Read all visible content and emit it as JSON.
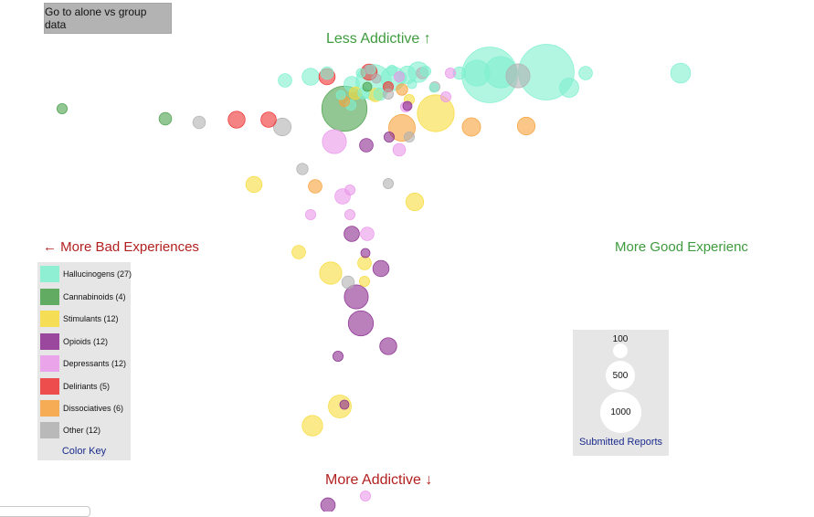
{
  "toggle_button": {
    "label": "Go to alone vs group data"
  },
  "axis_labels": {
    "top": "Less Addictive ↑",
    "bottom": "More Addictive ↓",
    "left": "← More Bad Experiences",
    "right": "More Good Experienc"
  },
  "color_key": {
    "title": "Color Key",
    "items": [
      {
        "label": "Hallucinogens (27)",
        "color": "#7ff0cf"
      },
      {
        "label": "Cannabinoids (4)",
        "color": "#4aa04a"
      },
      {
        "label": "Stimulants (12)",
        "color": "#f7dc3c"
      },
      {
        "label": "Opioids (12)",
        "color": "#8b2c8f"
      },
      {
        "label": "Depressants (12)",
        "color": "#ea98ea"
      },
      {
        "label": "Deliriants (5)",
        "color": "#ef3131"
      },
      {
        "label": "Dissociatives (6)",
        "color": "#f7a13b"
      },
      {
        "label": "Other (12)",
        "color": "#b0b0b0"
      }
    ]
  },
  "size_key": {
    "title": "Submitted Reports",
    "items": [
      {
        "label": "100",
        "reports": 100
      },
      {
        "label": "500",
        "reports": 500
      },
      {
        "label": "1000",
        "reports": 1000
      }
    ]
  },
  "chart_data": {
    "type": "scatter",
    "x_meaning": "relative share of good vs bad experiences (left = more bad, right = more good)",
    "y_meaning": "relative addictiveness (up = less addictive, down = more addictive)",
    "xlim": [
      0,
      891
    ],
    "ylim": [
      0,
      560
    ],
    "size_field": "submitted reports",
    "points": [
      {
        "cat": "Hallucinogens",
        "x": 536,
        "y": 82,
        "reports": 1180
      },
      {
        "cat": "Hallucinogens",
        "x": 598,
        "y": 79,
        "reports": 1180
      },
      {
        "cat": "Hallucinogens",
        "x": 548,
        "y": 79,
        "reports": 380
      },
      {
        "cat": "Hallucinogens",
        "x": 522,
        "y": 80,
        "reports": 260
      },
      {
        "cat": "Hallucinogens",
        "x": 409,
        "y": 90,
        "reports": 480
      },
      {
        "cat": "Hallucinogens",
        "x": 430,
        "y": 86,
        "reports": 220
      },
      {
        "cat": "Hallucinogens",
        "x": 745,
        "y": 80,
        "reports": 150
      },
      {
        "cat": "Hallucinogens",
        "x": 623,
        "y": 96,
        "reports": 140
      },
      {
        "cat": "Hallucinogens",
        "x": 641,
        "y": 80,
        "reports": 70
      },
      {
        "cat": "Hallucinogens",
        "x": 340,
        "y": 84,
        "reports": 110
      },
      {
        "cat": "Hallucinogens",
        "x": 312,
        "y": 88,
        "reports": 70
      },
      {
        "cat": "Hallucinogens",
        "x": 458,
        "y": 79,
        "reports": 160
      },
      {
        "cat": "Hallucinogens",
        "x": 446,
        "y": 82,
        "reports": 120
      },
      {
        "cat": "Hallucinogens",
        "x": 503,
        "y": 80,
        "reports": 60
      },
      {
        "cat": "Hallucinogens",
        "x": 385,
        "y": 92,
        "reports": 90
      },
      {
        "cat": "Hallucinogens",
        "x": 358,
        "y": 80,
        "reports": 60
      },
      {
        "cat": "Hallucinogens",
        "x": 475,
        "y": 96,
        "reports": 30
      },
      {
        "cat": "Hallucinogens",
        "x": 416,
        "y": 103,
        "reports": 60
      },
      {
        "cat": "Hallucinogens",
        "x": 398,
        "y": 102,
        "reports": 50
      },
      {
        "cat": "Hallucinogens",
        "x": 439,
        "y": 85,
        "reports": 50
      },
      {
        "cat": "Hallucinogens",
        "x": 384,
        "y": 115,
        "reports": 40
      },
      {
        "cat": "Hallucinogens",
        "x": 429,
        "y": 77,
        "reports": 40
      },
      {
        "cat": "Hallucinogens",
        "x": 466,
        "y": 78,
        "reports": 40
      },
      {
        "cat": "Hallucinogens",
        "x": 395,
        "y": 80,
        "reports": 30
      },
      {
        "cat": "Hallucinogens",
        "x": 373,
        "y": 104,
        "reports": 30
      },
      {
        "cat": "Hallucinogens",
        "x": 451,
        "y": 92,
        "reports": 30
      },
      {
        "cat": "Hallucinogens",
        "x": 406,
        "y": 76,
        "reports": 30
      },
      {
        "cat": "Cannabinoids",
        "x": 377,
        "y": 119,
        "reports": 780
      },
      {
        "cat": "Cannabinoids",
        "x": 181,
        "y": 130,
        "reports": 60
      },
      {
        "cat": "Cannabinoids",
        "x": 68,
        "y": 119,
        "reports": 40
      },
      {
        "cat": "Cannabinoids",
        "x": 402,
        "y": 95,
        "reports": 30
      },
      {
        "cat": "Stimulants",
        "x": 477,
        "y": 124,
        "reports": 520
      },
      {
        "cat": "Stimulants",
        "x": 454,
        "y": 221,
        "reports": 120
      },
      {
        "cat": "Stimulants",
        "x": 278,
        "y": 202,
        "reports": 100
      },
      {
        "cat": "Stimulants",
        "x": 362,
        "y": 299,
        "reports": 190
      },
      {
        "cat": "Stimulants",
        "x": 372,
        "y": 445,
        "reports": 200
      },
      {
        "cat": "Stimulants",
        "x": 342,
        "y": 466,
        "reports": 160
      },
      {
        "cat": "Stimulants",
        "x": 327,
        "y": 276,
        "reports": 70
      },
      {
        "cat": "Stimulants",
        "x": 411,
        "y": 104,
        "reports": 70
      },
      {
        "cat": "Stimulants",
        "x": 399,
        "y": 288,
        "reports": 70
      },
      {
        "cat": "Stimulants",
        "x": 389,
        "y": 102,
        "reports": 60
      },
      {
        "cat": "Stimulants",
        "x": 399,
        "y": 308,
        "reports": 40
      },
      {
        "cat": "Stimulants",
        "x": 448,
        "y": 109,
        "reports": 40
      },
      {
        "cat": "Opioids",
        "x": 395,
        "y": 354,
        "reports": 240
      },
      {
        "cat": "Opioids",
        "x": 390,
        "y": 325,
        "reports": 220
      },
      {
        "cat": "Opioids",
        "x": 425,
        "y": 379,
        "reports": 110
      },
      {
        "cat": "Opioids",
        "x": 417,
        "y": 294,
        "reports": 100
      },
      {
        "cat": "Opioids",
        "x": 385,
        "y": 256,
        "reports": 90
      },
      {
        "cat": "Opioids",
        "x": 401,
        "y": 159,
        "reports": 70
      },
      {
        "cat": "Opioids",
        "x": 359,
        "y": 553,
        "reports": 80
      },
      {
        "cat": "Opioids",
        "x": 370,
        "y": 390,
        "reports": 40
      },
      {
        "cat": "Opioids",
        "x": 400,
        "y": 277,
        "reports": 30
      },
      {
        "cat": "Opioids",
        "x": 377,
        "y": 443,
        "reports": 30
      },
      {
        "cat": "Opioids",
        "x": 426,
        "y": 150,
        "reports": 40
      },
      {
        "cat": "Opioids",
        "x": 446,
        "y": 116,
        "reports": 30
      },
      {
        "cat": "Depressants",
        "x": 366,
        "y": 155,
        "reports": 220
      },
      {
        "cat": "Depressants",
        "x": 375,
        "y": 215,
        "reports": 90
      },
      {
        "cat": "Depressants",
        "x": 437,
        "y": 164,
        "reports": 60
      },
      {
        "cat": "Depressants",
        "x": 402,
        "y": 256,
        "reports": 70
      },
      {
        "cat": "Depressants",
        "x": 383,
        "y": 208,
        "reports": 40
      },
      {
        "cat": "Depressants",
        "x": 340,
        "y": 235,
        "reports": 40
      },
      {
        "cat": "Depressants",
        "x": 383,
        "y": 235,
        "reports": 40
      },
      {
        "cat": "Depressants",
        "x": 488,
        "y": 106,
        "reports": 40
      },
      {
        "cat": "Depressants",
        "x": 493,
        "y": 80,
        "reports": 40
      },
      {
        "cat": "Depressants",
        "x": 444,
        "y": 117,
        "reports": 40
      },
      {
        "cat": "Depressants",
        "x": 400,
        "y": 543,
        "reports": 40
      },
      {
        "cat": "Depressants",
        "x": 437,
        "y": 84,
        "reports": 40
      },
      {
        "cat": "Deliriants",
        "x": 259,
        "y": 131,
        "reports": 110
      },
      {
        "cat": "Deliriants",
        "x": 294,
        "y": 131,
        "reports": 90
      },
      {
        "cat": "Deliriants",
        "x": 358,
        "y": 84,
        "reports": 100
      },
      {
        "cat": "Deliriants",
        "x": 404,
        "y": 79,
        "reports": 100
      },
      {
        "cat": "Deliriants",
        "x": 425,
        "y": 95,
        "reports": 40
      },
      {
        "cat": "Dissociatives",
        "x": 440,
        "y": 140,
        "reports": 270
      },
      {
        "cat": "Dissociatives",
        "x": 516,
        "y": 139,
        "reports": 130
      },
      {
        "cat": "Dissociatives",
        "x": 576,
        "y": 138,
        "reports": 120
      },
      {
        "cat": "Dissociatives",
        "x": 345,
        "y": 204,
        "reports": 70
      },
      {
        "cat": "Dissociatives",
        "x": 440,
        "y": 98,
        "reports": 50
      },
      {
        "cat": "Dissociatives",
        "x": 377,
        "y": 111,
        "reports": 40
      },
      {
        "cat": "Other",
        "x": 567,
        "y": 83,
        "reports": 220
      },
      {
        "cat": "Other",
        "x": 309,
        "y": 139,
        "reports": 120
      },
      {
        "cat": "Other",
        "x": 218,
        "y": 134,
        "reports": 60
      },
      {
        "cat": "Other",
        "x": 331,
        "y": 185,
        "reports": 50
      },
      {
        "cat": "Other",
        "x": 381,
        "y": 309,
        "reports": 60
      },
      {
        "cat": "Other",
        "x": 425,
        "y": 201,
        "reports": 40
      },
      {
        "cat": "Other",
        "x": 448,
        "y": 150,
        "reports": 40
      },
      {
        "cat": "Other",
        "x": 462,
        "y": 80,
        "reports": 50
      },
      {
        "cat": "Other",
        "x": 425,
        "y": 103,
        "reports": 40
      },
      {
        "cat": "Other",
        "x": 476,
        "y": 95,
        "reports": 40
      },
      {
        "cat": "Other",
        "x": 412,
        "y": 86,
        "reports": 30
      },
      {
        "cat": "Other",
        "x": 404,
        "y": 76,
        "reports": 30
      }
    ]
  }
}
